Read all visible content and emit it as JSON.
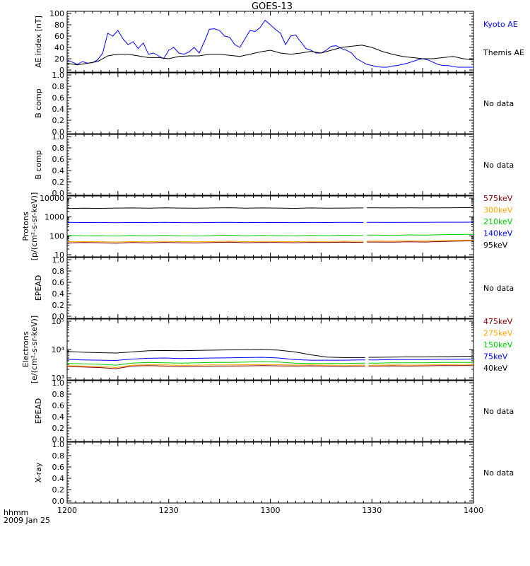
{
  "title": "GOES-13",
  "footer": {
    "unit_label": "hhmm",
    "date_label": "2009 Jan 25"
  },
  "time_ticks": [
    "1200",
    "1230",
    "1300",
    "1330",
    "1400"
  ],
  "colors": {
    "kyoto": "#0000ff",
    "themis": "#000000",
    "e575": "#800000",
    "e300": "#ffa500",
    "e210": "#00cc00",
    "e140": "#0000ff",
    "e95": "#000000"
  },
  "chart_data": [
    {
      "id": "ae",
      "type": "line",
      "ylabel": "AE index [nT]",
      "ylim": [
        0,
        100
      ],
      "ticks": [
        "0",
        "20",
        "40",
        "60",
        "80",
        "100"
      ],
      "x_units": "minutes after 1200 UT",
      "series": [
        {
          "name": "Kyoto AE",
          "color": "kyoto",
          "x": [
            0,
            3,
            6,
            9,
            12,
            15,
            18,
            21,
            24,
            27,
            30,
            33,
            36,
            39,
            42,
            45,
            48,
            51,
            54,
            57,
            60,
            63,
            66,
            69,
            72,
            75,
            78,
            81,
            84,
            87,
            90,
            93,
            96,
            99,
            102,
            105,
            108,
            111,
            114,
            117,
            120,
            123,
            126,
            129,
            132,
            135,
            138,
            141,
            144,
            147,
            150,
            153,
            156,
            159,
            162,
            165,
            168,
            171,
            174,
            177,
            180,
            183,
            186,
            189,
            192,
            195,
            198,
            201,
            204,
            207,
            210,
            213,
            216,
            219,
            222,
            225,
            228,
            231,
            234,
            237,
            240
          ],
          "y": [
            18,
            14,
            10,
            15,
            12,
            13,
            18,
            30,
            65,
            60,
            70,
            55,
            45,
            50,
            38,
            48,
            28,
            30,
            25,
            20,
            35,
            40,
            30,
            28,
            32,
            40,
            30,
            50,
            72,
            73,
            70,
            60,
            58,
            45,
            40,
            55,
            70,
            68,
            75,
            88,
            80,
            72,
            65,
            45,
            60,
            62,
            50,
            38,
            35,
            30,
            30,
            35,
            42,
            43,
            38,
            35,
            30,
            20,
            15,
            10,
            8,
            6,
            5,
            5,
            7,
            8,
            10,
            12,
            15,
            18,
            20,
            18,
            14,
            10,
            8,
            8,
            6,
            5,
            5,
            5,
            5
          ]
        },
        {
          "name": "Themis AE",
          "color": "themis",
          "x": [
            0,
            6,
            12,
            18,
            24,
            30,
            36,
            42,
            48,
            54,
            60,
            66,
            72,
            78,
            84,
            90,
            96,
            102,
            108,
            114,
            120,
            126,
            132,
            138,
            144,
            150,
            156,
            162,
            168,
            174,
            180,
            186,
            192,
            198,
            204,
            210,
            216,
            222,
            228,
            234,
            240
          ],
          "y": [
            12,
            9,
            12,
            15,
            25,
            28,
            28,
            25,
            22,
            22,
            20,
            24,
            25,
            25,
            28,
            28,
            26,
            24,
            28,
            32,
            35,
            30,
            28,
            30,
            33,
            30,
            35,
            40,
            42,
            44,
            40,
            33,
            28,
            24,
            22,
            20,
            20,
            22,
            24,
            20,
            18
          ]
        }
      ]
    },
    {
      "id": "bcomp1",
      "type": "line",
      "ylabel": "B comp",
      "ylim": [
        0,
        1
      ],
      "ticks": [
        "0.0",
        "0.2",
        "0.4",
        "0.6",
        "0.8",
        "1.0"
      ],
      "status": "No data"
    },
    {
      "id": "bcomp2",
      "type": "line",
      "ylabel": "B comp",
      "ylim": [
        0,
        1
      ],
      "ticks": [
        "0.0",
        "0.2",
        "0.4",
        "0.6",
        "0.8",
        "1.0"
      ],
      "status": "No data"
    },
    {
      "id": "protons",
      "type": "line",
      "ylabel": "Protons",
      "ylabel2": "[p/(cm²-s-sr-keV)]",
      "yscale": "log",
      "ylim": [
        10,
        10000
      ],
      "ticks": [
        "10",
        "100",
        "1000",
        "10000"
      ],
      "gap": [
        175,
        177
      ],
      "series": [
        {
          "name": "575keV",
          "color": "e575",
          "values": [
            42,
            44,
            43,
            41,
            44,
            42,
            45,
            43,
            42,
            44,
            46,
            43,
            45,
            44,
            43,
            45,
            44,
            46,
            45,
            47,
            46,
            48,
            47,
            50,
            52,
            55
          ]
        },
        {
          "name": "300keV",
          "color": "e300",
          "values": [
            48,
            50,
            49,
            47,
            50,
            48,
            51,
            49,
            48,
            50,
            52,
            49,
            51,
            50,
            49,
            51,
            50,
            52,
            51,
            53,
            52,
            54,
            53,
            56,
            58,
            60
          ]
        },
        {
          "name": "210keV",
          "color": "e210",
          "values": [
            105,
            100,
            102,
            98,
            104,
            100,
            106,
            100,
            98,
            104,
            108,
            100,
            105,
            102,
            100,
            106,
            102,
            108,
            104,
            110,
            106,
            112,
            108,
            115,
            118,
            120
          ]
        },
        {
          "name": "140keV",
          "color": "e140",
          "values": [
            520,
            510,
            515,
            500,
            512,
            505,
            518,
            505,
            500,
            512,
            520,
            505,
            515,
            510,
            505,
            515,
            508,
            518,
            512,
            520,
            515,
            522,
            518,
            525,
            528,
            530
          ]
        },
        {
          "name": "95keV",
          "color": "e95",
          "values": [
            2800,
            2900,
            2850,
            2950,
            3000,
            2900,
            3050,
            2950,
            2900,
            3000,
            3100,
            2900,
            3000,
            2950,
            2850,
            3000,
            2900,
            2950,
            3000,
            3050,
            3000,
            3050,
            3000,
            3050,
            3100,
            3150
          ]
        }
      ]
    },
    {
      "id": "epead1",
      "type": "line",
      "ylabel": "EPEAD",
      "ylim": [
        0,
        1
      ],
      "ticks": [
        "0.0",
        "0.2",
        "0.4",
        "0.6",
        "0.8",
        "1.0"
      ],
      "status": "No data"
    },
    {
      "id": "electrons",
      "type": "line",
      "ylabel": "Electrons",
      "ylabel2": "[e/(cm²-s-sr-keV)]",
      "yscale": "log",
      "ylim": [
        1000,
        100000
      ],
      "ticks": [
        "10³",
        "10⁴",
        "10⁵"
      ],
      "gap": [
        176,
        178
      ],
      "series": [
        {
          "name": "475keV",
          "color": "e575",
          "values": [
            2500,
            2400,
            2300,
            2100,
            2600,
            2700,
            2600,
            2500,
            2550,
            2600,
            2600,
            2650,
            2700,
            2650,
            2600,
            2650,
            2600,
            2550,
            2600,
            2600,
            2650,
            2600,
            2650,
            2700,
            2700,
            2700
          ]
        },
        {
          "name": "275keV",
          "color": "e300",
          "values": [
            2700,
            2600,
            2500,
            2300,
            2800,
            2900,
            2850,
            2750,
            2800,
            2850,
            2850,
            2900,
            2950,
            2900,
            2800,
            2850,
            2800,
            2750,
            2800,
            2800,
            2850,
            2800,
            2850,
            2900,
            2950,
            2950
          ]
        },
        {
          "name": "150keV",
          "color": "e210",
          "values": [
            3200,
            3100,
            3000,
            2800,
            3300,
            3500,
            3400,
            3300,
            3400,
            3500,
            3500,
            3600,
            3700,
            3600,
            3300,
            3200,
            3200,
            3200,
            3300,
            3300,
            3400,
            3400,
            3400,
            3500,
            3500,
            3500
          ]
        },
        {
          "name": "75keV",
          "color": "e140",
          "values": [
            4500,
            4300,
            4200,
            4100,
            4600,
            4900,
            5000,
            4800,
            4900,
            5000,
            5100,
            5200,
            5300,
            5000,
            4400,
            4200,
            4200,
            4200,
            4300,
            4300,
            4400,
            4400,
            4400,
            4500,
            4500,
            4600
          ]
        },
        {
          "name": "40keV",
          "color": "e95",
          "values": [
            8500,
            8000,
            7700,
            7500,
            8200,
            9000,
            9200,
            9000,
            9300,
            9500,
            9700,
            9800,
            10000,
            9500,
            8200,
            6500,
            5400,
            5200,
            5200,
            5300,
            5400,
            5500,
            5500,
            5600,
            5700,
            5800
          ]
        }
      ]
    },
    {
      "id": "epead2",
      "type": "line",
      "ylabel": "EPEAD",
      "ylim": [
        0,
        1
      ],
      "ticks": [
        "0.0",
        "0.2",
        "0.4",
        "0.6",
        "0.8",
        "1.0"
      ],
      "status": "No data"
    },
    {
      "id": "xray",
      "type": "line",
      "ylabel": "X-ray",
      "ylim": [
        0,
        1
      ],
      "ticks": [
        "0.0",
        "0.2",
        "0.4",
        "0.6",
        "0.8",
        "1.0"
      ],
      "status": "No data"
    }
  ]
}
